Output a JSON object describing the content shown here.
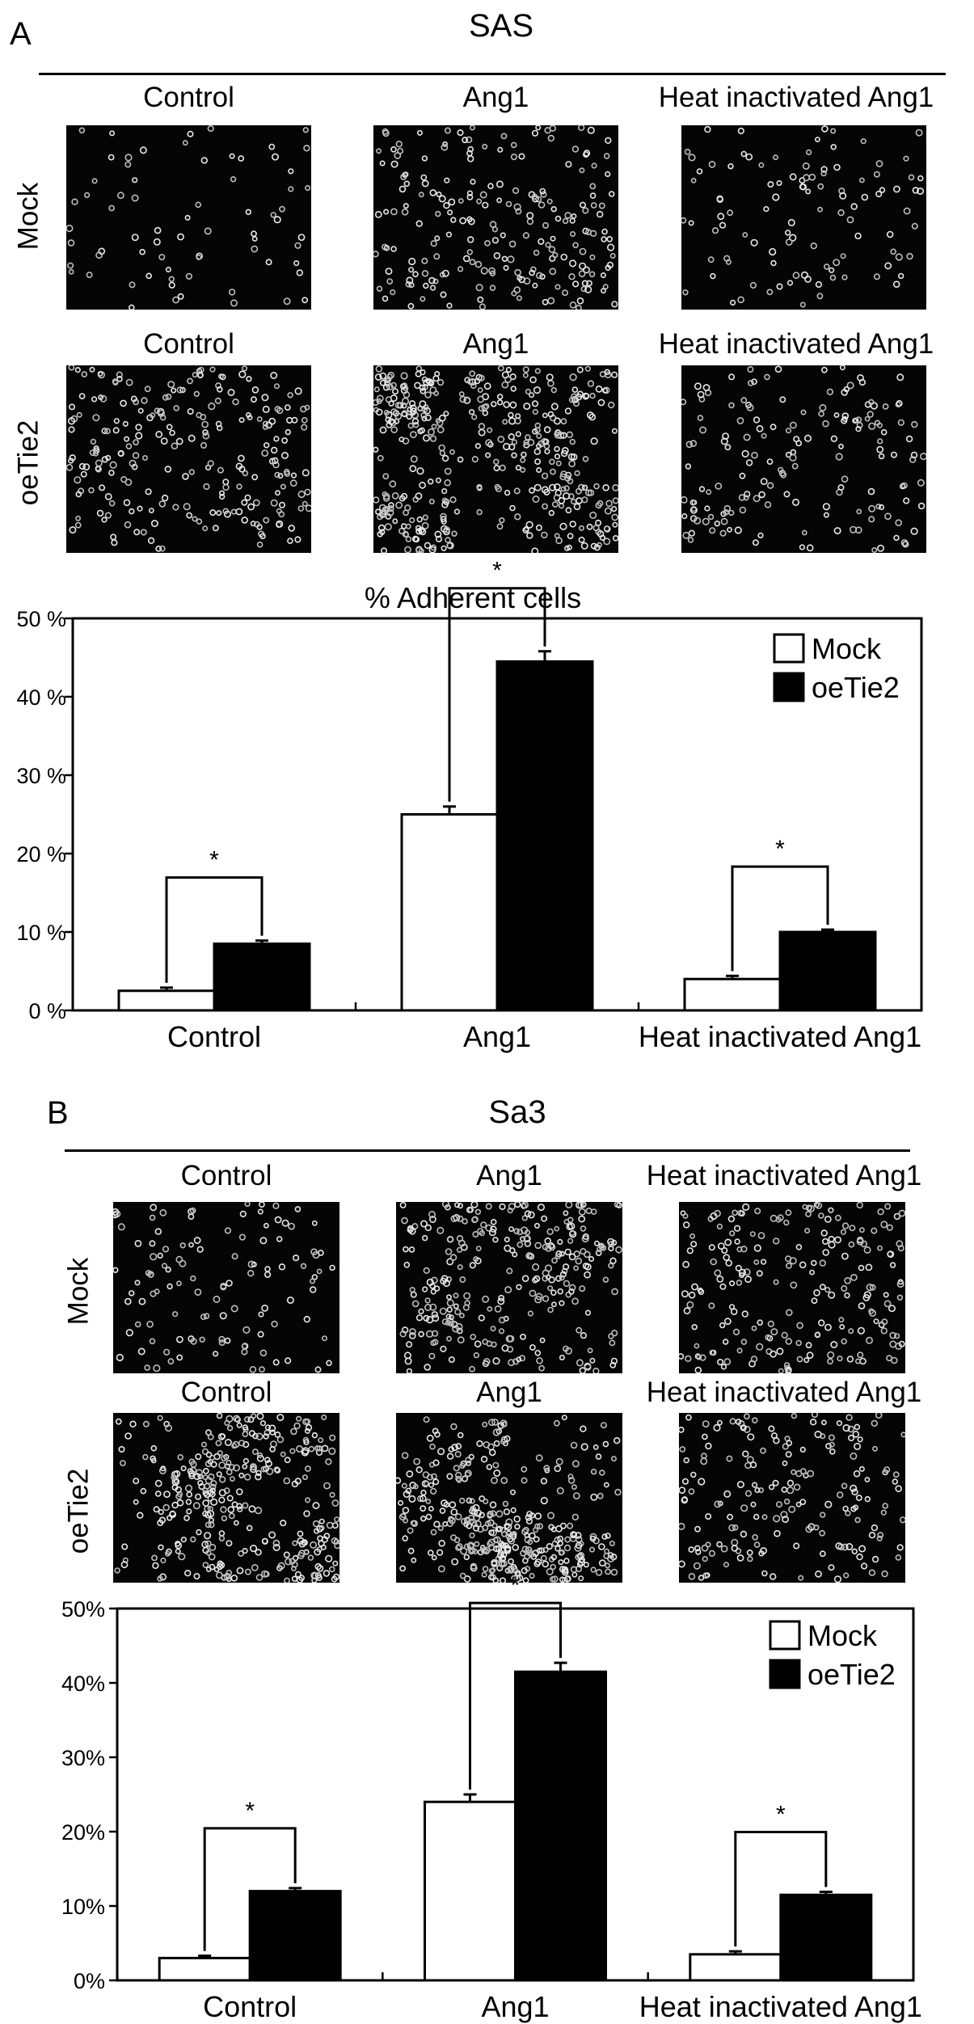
{
  "panels": [
    {
      "letter": "A",
      "title": "SAS",
      "rows": [
        {
          "label": "Mock",
          "columns": [
            "Control",
            "Ang1",
            "Heat inactivated Ang1"
          ],
          "density": [
            70,
            230,
            110
          ],
          "clump": [
            0.05,
            0.2,
            0.05
          ]
        },
        {
          "label": "oeTie2",
          "columns": [
            "Control",
            "Ang1",
            "Heat inactivated Ang1"
          ],
          "density": [
            260,
            520,
            180
          ],
          "clump": [
            0.35,
            0.7,
            0.3
          ]
        }
      ],
      "chart_title": "% Adherent cells"
    },
    {
      "letter": "B",
      "title": "Sa3",
      "rows": [
        {
          "label": "Mock",
          "columns": [
            "Control",
            "Ang1",
            "Heat inactivated Ang1"
          ],
          "density": [
            120,
            320,
            220
          ],
          "clump": [
            0.05,
            0.45,
            0.15
          ]
        },
        {
          "label": "oeTie2",
          "columns": [
            "Control",
            "Ang1",
            "Heat inactivated Ang1"
          ],
          "density": [
            380,
            420,
            190
          ],
          "clump": [
            0.55,
            0.75,
            0.1
          ]
        }
      ],
      "chart_title": ""
    }
  ],
  "chart_data": [
    {
      "type": "bar",
      "title": "% Adherent cells",
      "categories": [
        "Control",
        "Ang1",
        "Heat inactivated Ang1"
      ],
      "series": [
        {
          "name": "Mock",
          "color": "#ffffff",
          "values": [
            2.5,
            25.0,
            4.0
          ],
          "errors": [
            0.4,
            1.0,
            0.4
          ]
        },
        {
          "name": "oeTie2",
          "color": "#000000",
          "values": [
            8.5,
            44.5,
            10.0
          ],
          "errors": [
            0.4,
            1.3,
            0.3
          ]
        }
      ],
      "ylim": [
        0,
        50
      ],
      "yticks": [
        0,
        10,
        20,
        30,
        40,
        50
      ],
      "ytick_labels": [
        "0 %",
        "10 %",
        "20 %",
        "30 %",
        "40 %",
        "50 %"
      ],
      "significance": [
        "*",
        "*",
        "*"
      ],
      "legend": "top-right",
      "grid": false
    },
    {
      "type": "bar",
      "title": "",
      "categories": [
        "Control",
        "Ang1",
        "Heat inactivated Ang1"
      ],
      "series": [
        {
          "name": "Mock",
          "color": "#ffffff",
          "values": [
            3.0,
            24.0,
            3.5
          ],
          "errors": [
            0.3,
            1.0,
            0.4
          ]
        },
        {
          "name": "oeTie2",
          "color": "#000000",
          "values": [
            12.0,
            41.5,
            11.5
          ],
          "errors": [
            0.4,
            1.2,
            0.4
          ]
        }
      ],
      "ylim": [
        0,
        50
      ],
      "yticks": [
        0,
        10,
        20,
        30,
        40,
        50
      ],
      "ytick_labels": [
        "0%",
        "10%",
        "20%",
        "30%",
        "40%",
        "50%"
      ],
      "significance": [
        "*",
        "*",
        "*"
      ],
      "legend": "top-right",
      "grid": false
    }
  ]
}
